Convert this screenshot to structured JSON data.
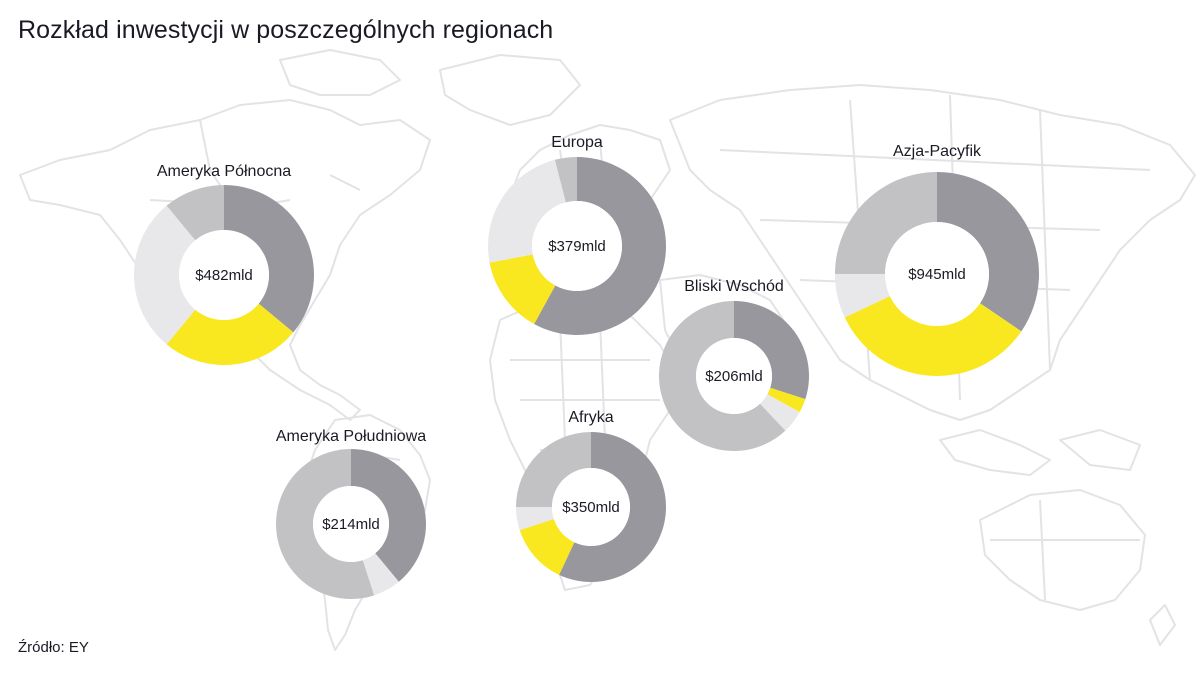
{
  "title": "Rozkład inwestycji w poszczególnych regionach",
  "source": "Źródło: EY",
  "colors": {
    "dark_grey": "#97979d",
    "yellow": "#f9e81f",
    "light": "#e8e8ea",
    "mid_grey": "#c2c2c5",
    "map": "#e6e6e8"
  },
  "chart_data": {
    "type": "donut",
    "unit": "mld",
    "regions": [
      {
        "name": "Ameryka Północna",
        "total": "$482mld",
        "segments": [
          {
            "color": "dark_grey",
            "share": 0.36
          },
          {
            "color": "yellow",
            "share": 0.25
          },
          {
            "color": "light",
            "share": 0.28
          },
          {
            "color": "mid_grey",
            "share": 0.11
          }
        ]
      },
      {
        "name": "Europa",
        "total": "$379mld",
        "segments": [
          {
            "color": "dark_grey",
            "share": 0.58
          },
          {
            "color": "yellow",
            "share": 0.14
          },
          {
            "color": "light",
            "share": 0.24
          },
          {
            "color": "mid_grey",
            "share": 0.04
          }
        ]
      },
      {
        "name": "Azja-Pacyfik",
        "total": "$945mld",
        "segments": [
          {
            "color": "dark_grey",
            "share": 0.345
          },
          {
            "color": "yellow",
            "share": 0.335
          },
          {
            "color": "light",
            "share": 0.07
          },
          {
            "color": "mid_grey",
            "share": 0.25
          }
        ]
      },
      {
        "name": "Bliski Wschód",
        "total": "$206mld",
        "segments": [
          {
            "color": "dark_grey",
            "share": 0.3
          },
          {
            "color": "yellow",
            "share": 0.03
          },
          {
            "color": "light",
            "share": 0.05
          },
          {
            "color": "mid_grey",
            "share": 0.62
          }
        ]
      },
      {
        "name": "Ameryka Południowa",
        "total": "$214mld",
        "segments": [
          {
            "color": "dark_grey",
            "share": 0.39
          },
          {
            "color": "light",
            "share": 0.06
          },
          {
            "color": "mid_grey",
            "share": 0.55
          }
        ]
      },
      {
        "name": "Afryka",
        "total": "$350mld",
        "segments": [
          {
            "color": "dark_grey",
            "share": 0.57
          },
          {
            "color": "yellow",
            "share": 0.13
          },
          {
            "color": "light",
            "share": 0.05
          },
          {
            "color": "mid_grey",
            "share": 0.25
          }
        ]
      }
    ]
  }
}
